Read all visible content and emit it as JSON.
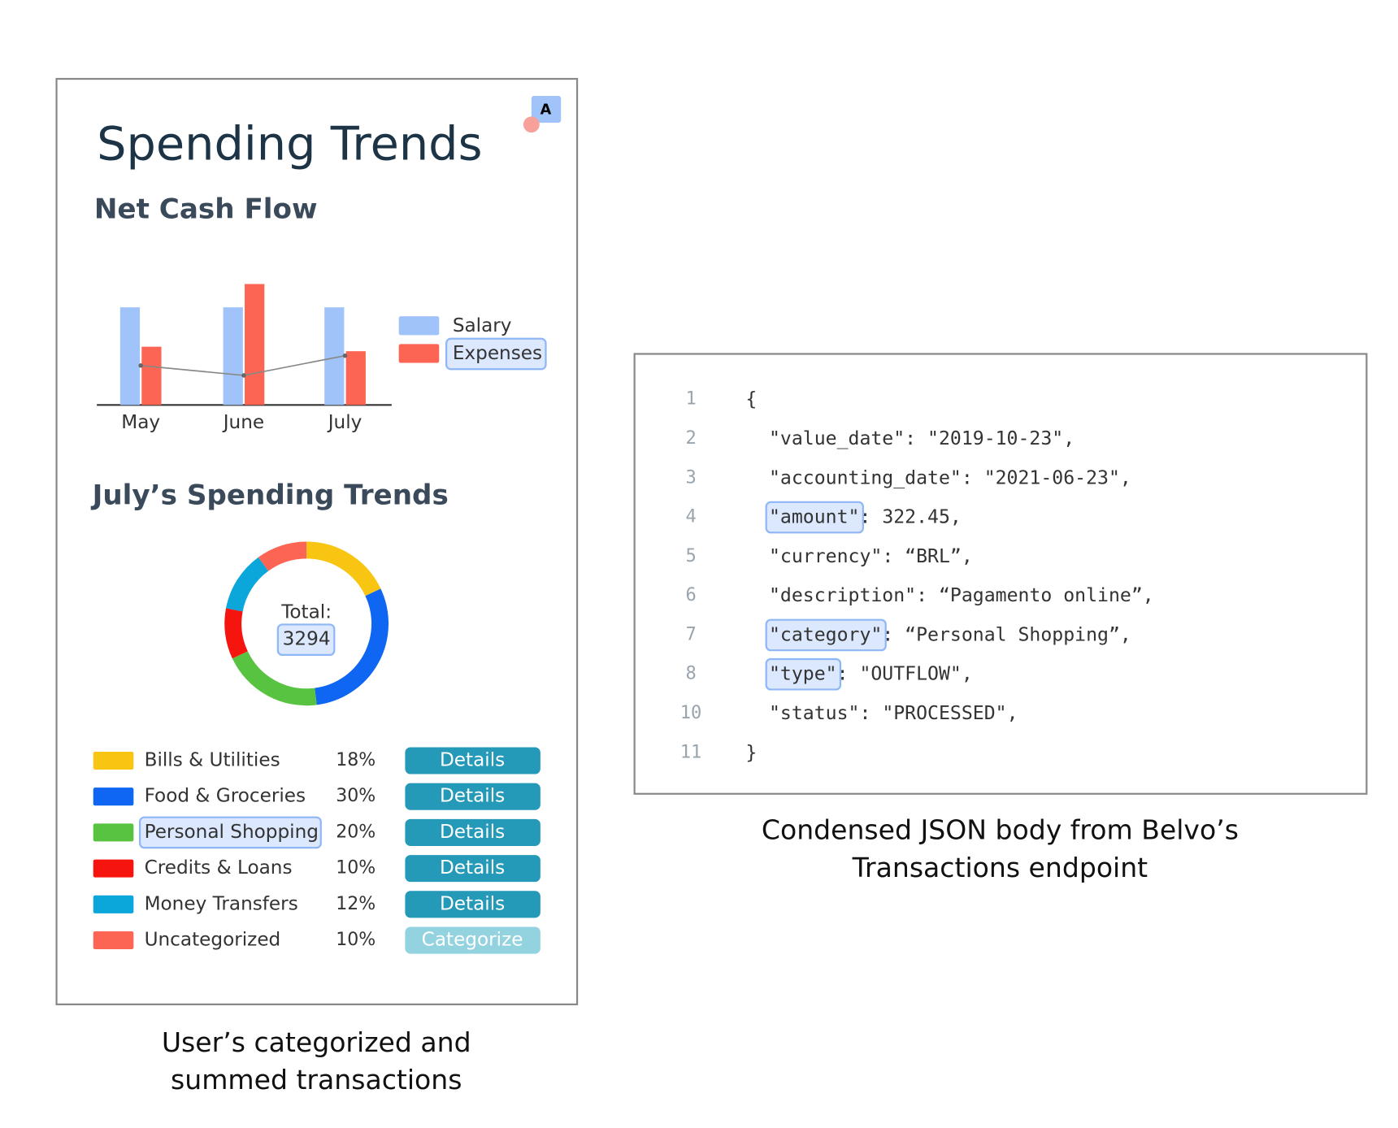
{
  "app": {
    "title": "Spending Trends",
    "avatar": "A",
    "net_cash_flow": {
      "title": "Net Cash Flow",
      "chart_data": {
        "type": "bar",
        "categories": [
          "May",
          "June",
          "July"
        ],
        "series": [
          {
            "name": "Salary",
            "color": "#a0c4fa",
            "values": [
              109,
              109,
              109
            ]
          },
          {
            "name": "Expenses",
            "color": "#fc6553",
            "values": [
              65,
              135,
              60
            ],
            "highlight": true
          }
        ],
        "trend": [
          44,
          33,
          55
        ]
      }
    },
    "spending": {
      "title": "July’s Spending Trends",
      "chart_data": {
        "type": "donut",
        "total_label": "Total:",
        "total": 3294,
        "categories": [
          "Bills & Utilities",
          "Food & Groceries",
          "Personal Shopping",
          "Credits & Loans",
          "Money Transfers",
          "Uncategorized"
        ],
        "colors": [
          "#f8c513",
          "#0f66f2",
          "#58c340",
          "#f6140f",
          "#0ba6da",
          "#fc6553"
        ],
        "values": [
          18,
          30,
          20,
          10,
          12,
          10
        ],
        "value_labels": [
          "18%",
          "30%",
          "20%",
          "10%",
          "12%",
          "10%"
        ],
        "actions": [
          "Details",
          "Details",
          "Details",
          "Details",
          "Details",
          "Categorize"
        ],
        "highlight_index": 2
      }
    },
    "caption": [
      "User’s categorized and",
      "summed transactions"
    ]
  },
  "code": {
    "lines": [
      {
        "number": 1,
        "rest": "{"
      },
      {
        "number": 2,
        "key": "\"value_date\"",
        "rest": ": \"2019-10-23\","
      },
      {
        "number": 3,
        "key": "\"accounting_date\"",
        "rest": ": \"2021-06-23\","
      },
      {
        "number": 4,
        "key": "\"amount\"",
        "rest": ": 322.45,",
        "highlight": true
      },
      {
        "number": 5,
        "key": "\"currency\"",
        "rest": ": “BRL”,"
      },
      {
        "number": 6,
        "key": "\"description\"",
        "rest": ": “Pagamento online”,"
      },
      {
        "number": 7,
        "key": "\"category\"",
        "rest": ": “Personal Shopping”,",
        "highlight": true
      },
      {
        "number": 8,
        "key": "\"type\"",
        "rest": ": \"OUTFLOW\",",
        "highlight": true
      },
      {
        "number": 10,
        "key": "\"status\"",
        "rest": ": \"PROCESSED\","
      },
      {
        "number": 11,
        "rest": "}"
      }
    ],
    "caption": [
      "Condensed JSON body from Belvo’s",
      "Transactions endpoint"
    ]
  }
}
